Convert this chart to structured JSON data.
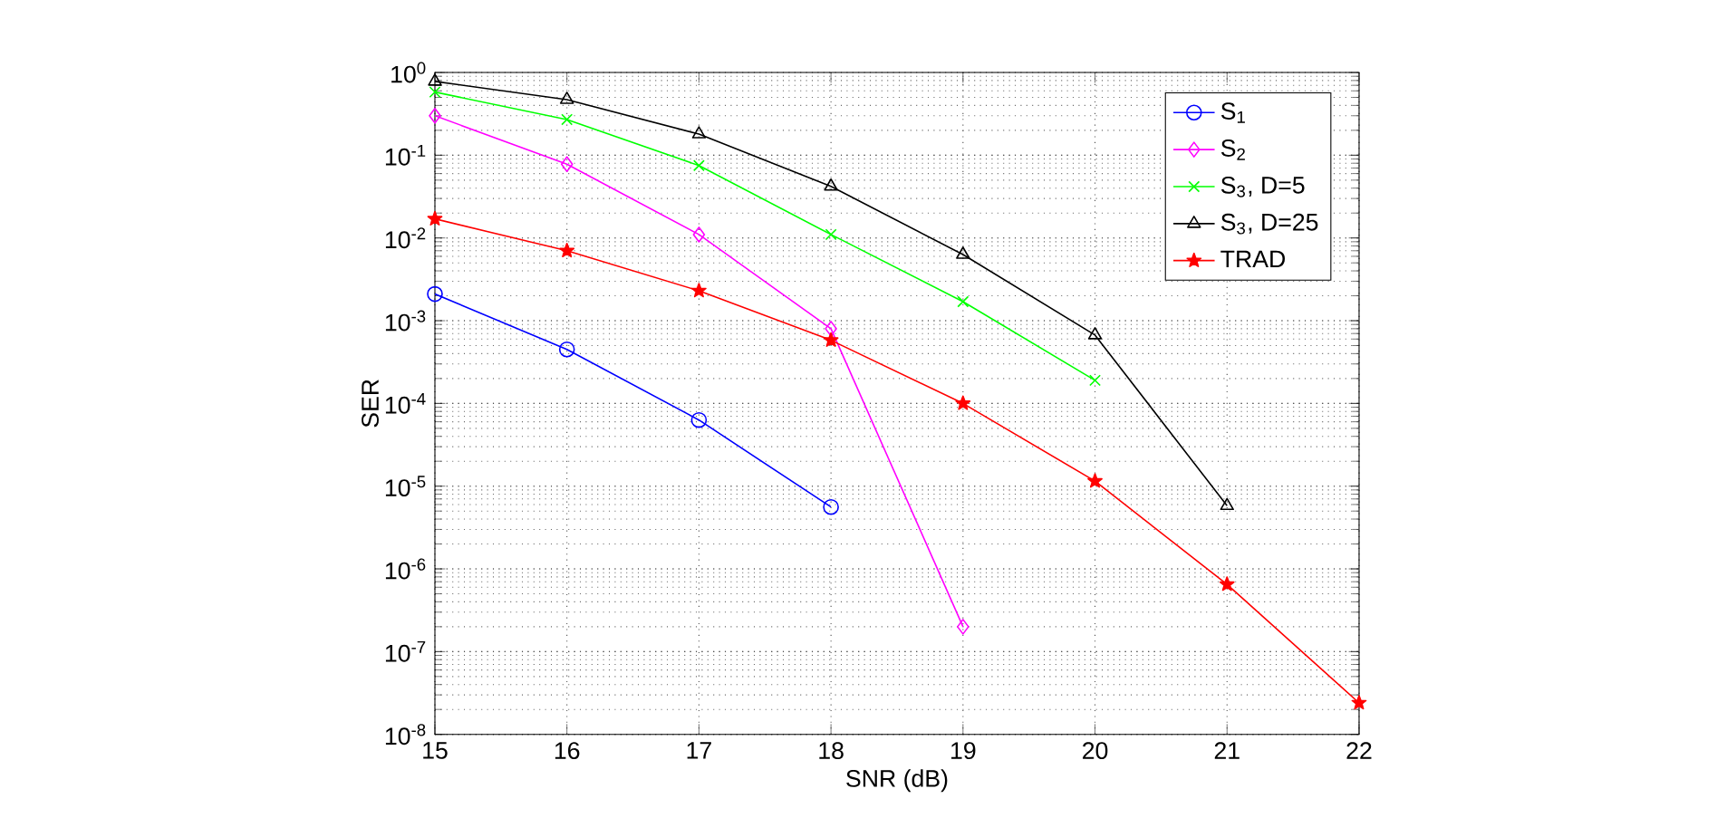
{
  "chart_data": {
    "type": "line",
    "xlabel": "SNR (dB)",
    "ylabel": "SER",
    "log": "y",
    "grid": true,
    "legend": "top right",
    "line_style": "solid",
    "xlim": [
      15,
      22
    ],
    "xticks": [
      15,
      16,
      17,
      18,
      19,
      20,
      21,
      22
    ],
    "ylim": [
      1e-08,
      1
    ],
    "yticks": [
      {
        "value": 1e-08,
        "label": "10$^{-8}$"
      },
      {
        "value": 1e-07,
        "label": "10$^{-7}$"
      },
      {
        "value": 1e-06,
        "label": "10$^{-6}$"
      },
      {
        "value": 1e-05,
        "label": "10$^{-5}$"
      },
      {
        "value": 0.0001,
        "label": "10$^{-4}$"
      },
      {
        "value": 0.001,
        "label": "10$^{-3}$"
      },
      {
        "value": 0.01,
        "label": "10$^{-2}$"
      },
      {
        "value": 0.1,
        "label": "10$^{-1}$"
      },
      {
        "value": 1,
        "label": "10$^{0}$"
      }
    ],
    "x": [
      15,
      16,
      17,
      18,
      19,
      20,
      21,
      22
    ],
    "series": [
      {
        "name": "S$_{1}$",
        "color": "#0000ff",
        "marker": "circle",
        "values": [
          0.0021,
          0.00045,
          6.3e-05,
          5.6e-06,
          null,
          null,
          null,
          null
        ]
      },
      {
        "name": "S$_{2}$",
        "color": "#ff00ff",
        "marker": "diamond",
        "values": [
          0.3,
          0.078,
          0.011,
          0.0008,
          2e-07,
          null,
          null,
          null
        ]
      },
      {
        "name": "S$_{3}$, D=5",
        "color": "#00ff00",
        "marker": "cross",
        "values": [
          0.58,
          0.27,
          0.075,
          0.011,
          0.0017,
          0.00019,
          null,
          null
        ]
      },
      {
        "name": "S$_{3}$, D=25",
        "color": "#000000",
        "marker": "triangle",
        "values": [
          0.78,
          0.47,
          0.18,
          0.042,
          0.0063,
          0.00067,
          5.8e-06,
          null
        ]
      },
      {
        "name": "TRAD",
        "color": "#ff0000",
        "marker": "star",
        "values": [
          0.017,
          0.007,
          0.0023,
          0.00058,
          0.0001,
          1.15e-05,
          6.5e-07,
          2.4e-08
        ]
      }
    ]
  }
}
